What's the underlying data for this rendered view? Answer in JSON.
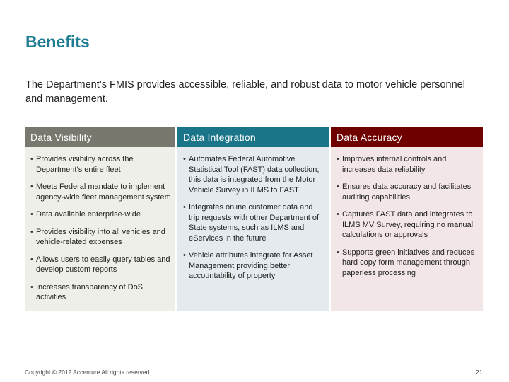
{
  "slide": {
    "title": "Benefits",
    "intro": "The Department’s FMIS provides accessible, reliable, and robust data to motor vehicle personnel and management."
  },
  "columns": [
    {
      "heading": "Data Visibility",
      "color": "#78786f",
      "items": [
        "Provides visibility across the Department’s entire fleet",
        "Meets Federal mandate to implement agency-wide fleet management system",
        "Data available enterprise-wide",
        "Provides visibility into all vehicles and vehicle-related expenses",
        "Allows users to easily query tables and develop custom reports",
        "Increases transparency of DoS activities"
      ]
    },
    {
      "heading": "Data Integration",
      "color": "#1a7589",
      "items": [
        "Automates Federal Automotive Statistical Tool (FAST) data collection; this data is integrated from the Motor Vehicle Survey in ILMS to FAST",
        "Integrates online customer data and trip requests with other Department of State systems, such as ILMS and eServices in the future",
        "Vehicle attributes integrate for Asset Management providing better accountability of property"
      ]
    },
    {
      "heading": "Data Accuracy",
      "color": "#6e0000",
      "items": [
        "Improves internal controls and increases data reliability",
        "Ensures data accuracy and facilitates auditing capabilities",
        "Captures FAST data and integrates to ILMS MV Survey, requiring no manual calculations or approvals",
        "Supports green initiatives and reduces hard copy form management through paperless processing"
      ]
    }
  ],
  "footer": {
    "copyright": "Copyright © 2012 Accenture All rights reserved.",
    "page_number": "21"
  }
}
